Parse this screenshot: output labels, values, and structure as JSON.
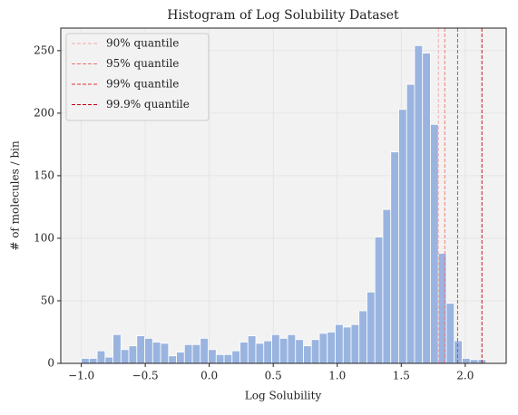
{
  "chart_data": {
    "type": "histogram",
    "title": "Histogram of Log Solubility Dataset",
    "xlabel": "Log Solubility",
    "ylabel": "# of molecules / bin",
    "bins": [
      -1.0,
      -0.938,
      -0.876,
      -0.814,
      -0.752,
      -0.69,
      -0.628,
      -0.566,
      -0.504,
      -0.442,
      -0.38,
      -0.318,
      -0.256,
      -0.194,
      -0.132,
      -0.07,
      -0.008,
      0.054,
      0.116,
      0.178,
      0.24,
      0.302,
      0.364,
      0.426,
      0.488,
      0.55,
      0.612,
      0.674,
      0.736,
      0.798,
      0.86,
      0.922,
      0.984,
      1.046,
      1.108,
      1.17,
      1.232,
      1.294,
      1.356,
      1.418,
      1.48,
      1.542,
      1.604,
      1.666,
      1.728,
      1.79,
      1.852,
      1.914,
      1.976,
      2.038,
      2.1,
      2.162
    ],
    "values": [
      4,
      4,
      10,
      5,
      23,
      11,
      14,
      22,
      20,
      17,
      16,
      6,
      9,
      15,
      15,
      20,
      11,
      7,
      7,
      10,
      17,
      22,
      16,
      18,
      23,
      20,
      23,
      19,
      14,
      19,
      24,
      25,
      31,
      29,
      31,
      42,
      57,
      101,
      123,
      169,
      203,
      223,
      254,
      248,
      191,
      88,
      48,
      18,
      4,
      3,
      3
    ],
    "color": "#9ab4e0",
    "vlines": [
      {
        "name": "90% quantile",
        "value": 1.79,
        "color": "#f4a8a8"
      },
      {
        "name": "95% quantile",
        "value": 1.84,
        "color": "#f07070"
      },
      {
        "name": "99% quantile",
        "value": 1.94,
        "color": "#e03030"
      },
      {
        "name": "99.9% quantile",
        "value": 2.13,
        "color": "#c00010"
      }
    ],
    "xlim": [
      -1.16,
      2.32
    ],
    "ylim": [
      0,
      268
    ],
    "xticks": [
      {
        "value": -1.0,
        "label": "−1.0"
      },
      {
        "value": -0.5,
        "label": "−0.5"
      },
      {
        "value": 0,
        "label": "0.0"
      },
      0.5,
      {
        "value": 1,
        "label": "1.0"
      },
      1.5,
      {
        "value": 2,
        "label": "2.0"
      }
    ],
    "yticks": [
      0,
      50,
      100,
      150,
      200,
      250
    ],
    "grid": true,
    "legend": "upper left"
  }
}
